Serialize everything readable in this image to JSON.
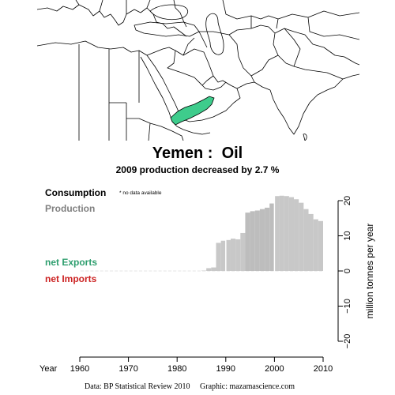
{
  "title": "Yemen :  Oil",
  "subtitle": "2009 production decreased by 2.7 %",
  "legend": {
    "consumption": "Consumption",
    "production": "Production",
    "no_data_note": "* no data available",
    "net_exports": "net Exports",
    "net_imports": "net Imports"
  },
  "footer": "Data: BP Statistical Review 2010     Graphic: mazamascience.com",
  "colors": {
    "highlight_country": "#3ecc8c",
    "production": "#c8c8c8",
    "production_dark": "#bdbdbd",
    "exports": "#2e9e6e",
    "imports": "#cc2222",
    "production_label": "#808080",
    "map_border": "#000000"
  },
  "map": {
    "highlighted_country": "Yemen"
  },
  "chart_data": {
    "type": "bar",
    "title": "Yemen :  Oil",
    "subtitle": "2009 production decreased by 2.7 %",
    "xlabel": "Year",
    "ylabel": "million tonnes per year",
    "xlim": [
      1960,
      2010
    ],
    "ylim": [
      -20,
      20
    ],
    "x_ticks": [
      1960,
      1970,
      1980,
      1990,
      2000,
      2010
    ],
    "y_ticks": [
      -20,
      -10,
      0,
      10,
      20
    ],
    "consumption_available": false,
    "series": [
      {
        "name": "Production",
        "x": [
          1985,
          1986,
          1987,
          1988,
          1989,
          1990,
          1991,
          1992,
          1993,
          1994,
          1995,
          1996,
          1997,
          1998,
          1999,
          2000,
          2001,
          2002,
          2003,
          2004,
          2005,
          2006,
          2007,
          2008,
          2009
        ],
        "values": [
          0.1,
          0.8,
          1.0,
          8.0,
          8.6,
          8.8,
          9.2,
          9.0,
          10.8,
          16.6,
          17.0,
          17.2,
          17.6,
          18.0,
          19.2,
          21.3,
          21.4,
          21.3,
          21.0,
          20.4,
          19.4,
          17.6,
          16.2,
          14.7,
          14.2
        ]
      }
    ]
  }
}
